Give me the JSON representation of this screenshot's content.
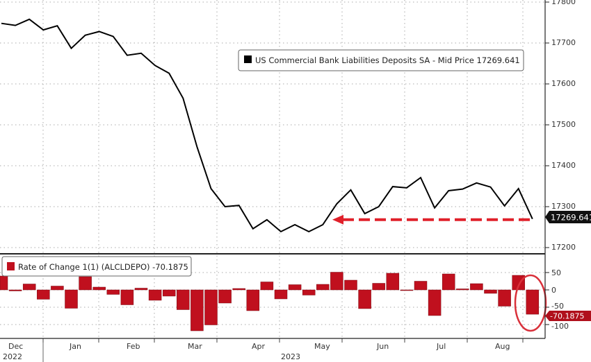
{
  "chart_data": [
    {
      "type": "line",
      "panel": "upper",
      "legend": "US Commercial Bank Liabilities Deposits SA - Mid Price 17269.641",
      "last_value_label": "17269.641",
      "ylim": [
        17200,
        17800
      ],
      "yticks": [
        17200,
        17300,
        17400,
        17500,
        17600,
        17700,
        17800
      ],
      "grid": true,
      "legend_position": "top-right",
      "annotation": "red dashed arrow pointing left at last value level",
      "colors": {
        "line": "#000000",
        "arrow": "#e0202a",
        "label_bg": "#000000"
      },
      "values": [
        17748,
        17743,
        17758,
        17732,
        17742,
        17687,
        17719,
        17728,
        17716,
        17670,
        17675,
        17645,
        17626,
        17565,
        17446,
        17344,
        17300,
        17303,
        17246,
        17268,
        17239,
        17256,
        17239,
        17256,
        17307,
        17341,
        17283,
        17300,
        17349,
        17346,
        17371,
        17297,
        17339,
        17343,
        17358,
        17348,
        17302,
        17344,
        17270
      ]
    },
    {
      "type": "bar",
      "panel": "lower",
      "legend": "Rate of Change 1(1) (ALCLDEPO) -70.1875",
      "last_value_label": "-70.1875",
      "ylim": [
        -125,
        85
      ],
      "yticks": [
        -100,
        -50,
        0,
        50
      ],
      "grid": true,
      "legend_position": "top-left",
      "colors": {
        "bar": "#c0101e",
        "circle": "#d9303a",
        "label_bg": "#b0101c"
      },
      "values": [
        40,
        -3,
        17,
        -27,
        11,
        -53,
        38,
        8,
        -13,
        -43,
        5,
        -30,
        -18,
        -57,
        -118,
        -101,
        -38,
        4,
        -60,
        23,
        -26,
        15,
        -15,
        16,
        51,
        28,
        -54,
        19,
        48,
        -2,
        25,
        -74,
        46,
        3,
        18,
        -10,
        -47,
        42,
        -70.1875
      ]
    }
  ],
  "x_axis": {
    "months": [
      "Dec",
      "Jan",
      "Feb",
      "Mar",
      "Apr",
      "May",
      "Jun",
      "Jul",
      "Aug"
    ],
    "years": [
      "2022",
      "2023"
    ]
  }
}
